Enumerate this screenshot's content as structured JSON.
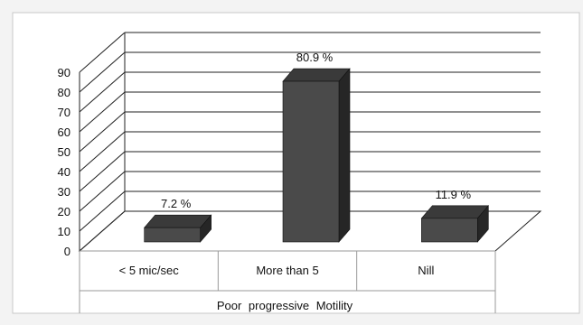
{
  "chart_data": {
    "type": "bar",
    "style": "3d-column",
    "categories": [
      "< 5 mic/sec",
      "More than 5",
      "Nill"
    ],
    "values": [
      7.2,
      80.9,
      11.9
    ],
    "data_labels": [
      "7.2 %",
      "80.9 %",
      "11.9 %"
    ],
    "xlabel": "Poor  progressive   Motility",
    "ylabel": "",
    "ylim": [
      0,
      90
    ],
    "yticks": [
      0,
      10,
      20,
      30,
      40,
      50,
      60,
      70,
      80,
      90
    ],
    "grid": true,
    "legend": "none",
    "colors": {
      "bar_front": "#4a4a4a",
      "bar_top": "#3a3a3a",
      "bar_side": "#262626",
      "grid": "#222222",
      "background": "#ffffff",
      "page": "#f3f3f3"
    }
  }
}
